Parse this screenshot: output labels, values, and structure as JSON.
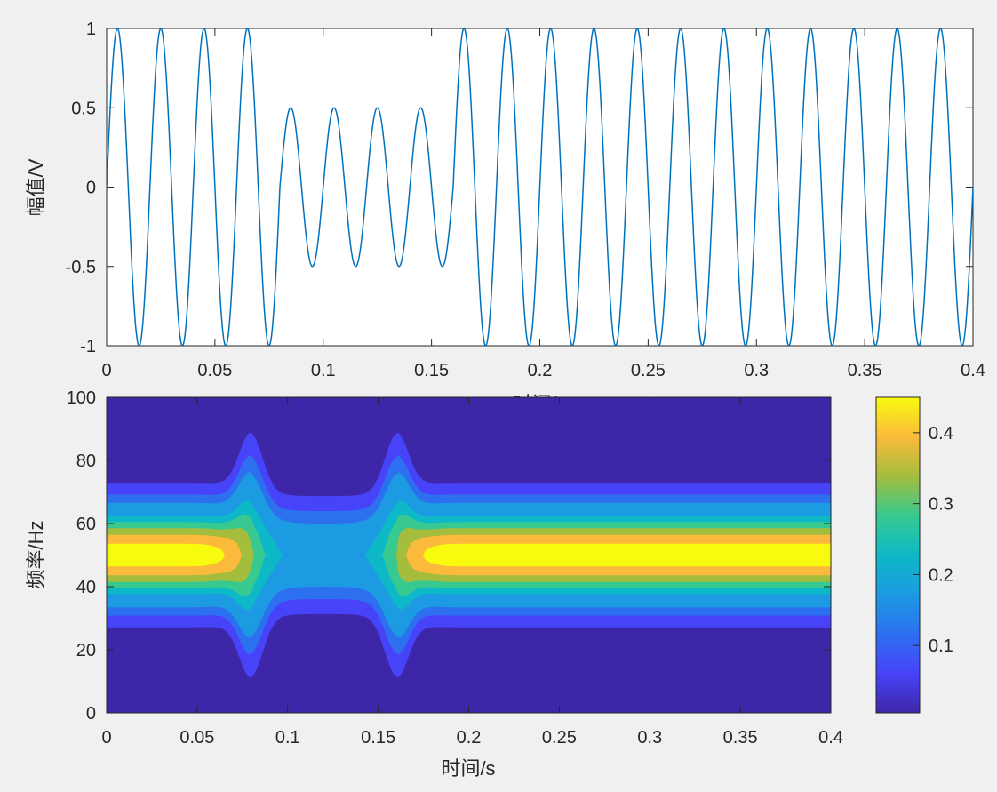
{
  "chart_data": [
    {
      "type": "line",
      "title": "",
      "xlabel": "时间/s",
      "ylabel": "幅值/V",
      "xlim": [
        0,
        0.4
      ],
      "ylim": [
        -1,
        1
      ],
      "xticks": [
        "0",
        "0.05",
        "0.1",
        "0.15",
        "0.2",
        "0.25",
        "0.3",
        "0.35",
        "0.4"
      ],
      "yticks": [
        "1",
        "0.5",
        "0",
        "-0.5",
        "-1"
      ],
      "series": [
        {
          "color": "#0072bd",
          "frequency_hz": 50,
          "segments": [
            {
              "t_start": 0,
              "t_end": 0.08,
              "amplitude": 1
            },
            {
              "t_start": 0.08,
              "t_end": 0.16,
              "amplitude": 0.5
            },
            {
              "t_start": 0.16,
              "t_end": 0.4,
              "amplitude": 1
            }
          ]
        }
      ]
    },
    {
      "type": "heatmap",
      "title": "",
      "xlabel": "时间/s",
      "ylabel": "频率/Hz",
      "xlim": [
        0,
        0.4
      ],
      "ylim": [
        0,
        100
      ],
      "xticks": [
        "0",
        "0.05",
        "0.1",
        "0.15",
        "0.2",
        "0.25",
        "0.3",
        "0.35",
        "0.4"
      ],
      "yticks": [
        "100",
        "80",
        "60",
        "40",
        "20",
        "0"
      ],
      "center_frequency_hz": 50,
      "colormap": "parula",
      "colorbar": {
        "range": [
          0.005,
          0.45
        ],
        "ticks": [
          "0.4",
          "0.3",
          "0.2",
          "0.1"
        ]
      },
      "peak_by_segment": [
        {
          "t_start": 0,
          "t_end": 0.08,
          "peak": 0.45
        },
        {
          "t_start": 0.08,
          "t_end": 0.16,
          "peak": 0.22
        },
        {
          "t_start": 0.16,
          "t_end": 0.4,
          "peak": 0.45
        }
      ]
    }
  ]
}
